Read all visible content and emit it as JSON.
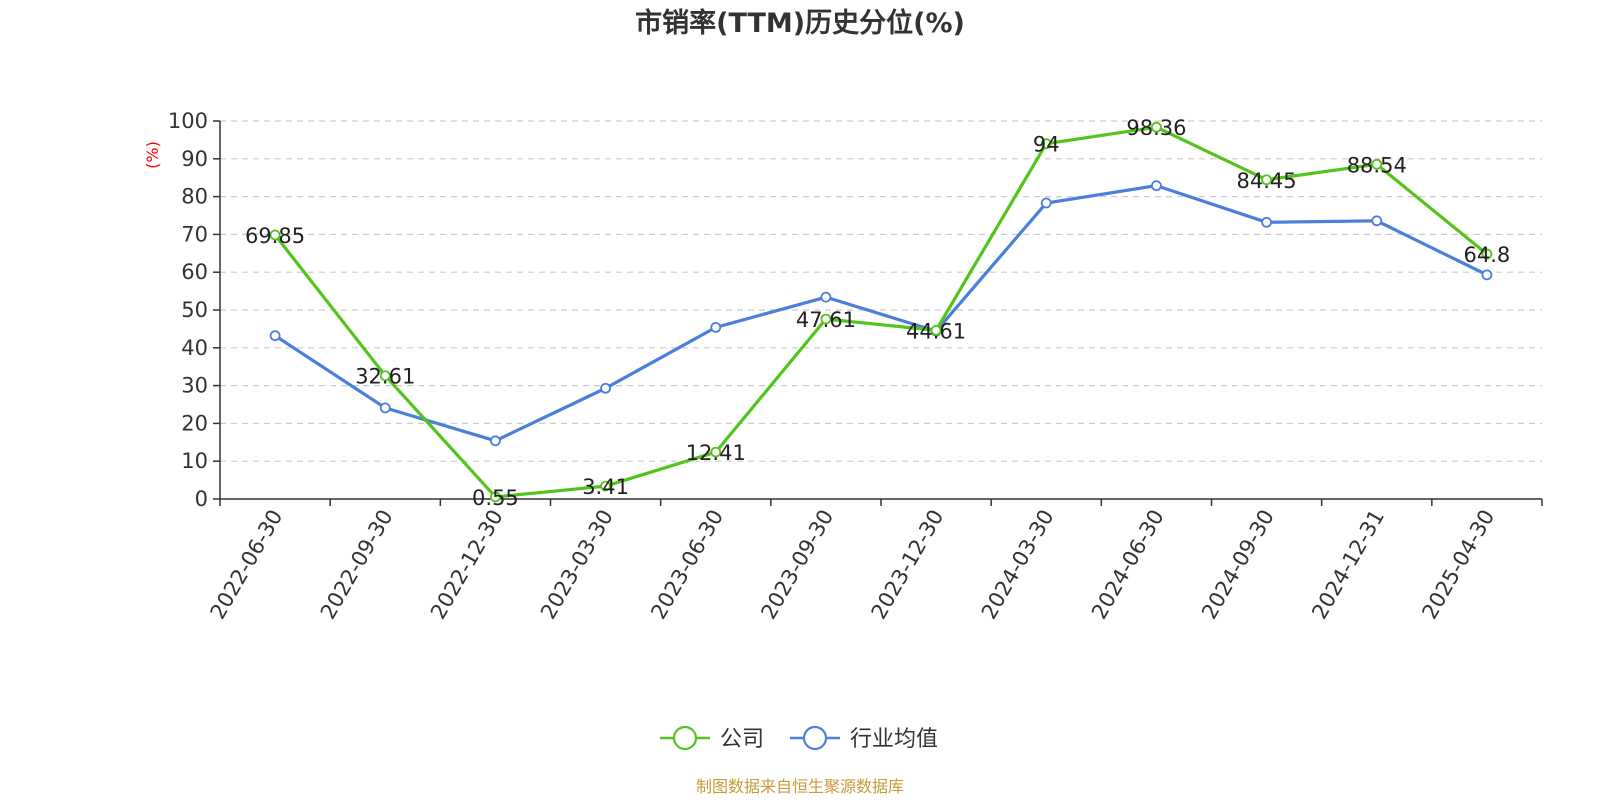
{
  "chart_data": {
    "type": "line",
    "title": "市销率(TTM)历史分位(%)",
    "ylabel": "(%)",
    "ylim": [
      0,
      100
    ],
    "yticks": [
      0,
      10,
      20,
      30,
      40,
      50,
      60,
      70,
      80,
      90,
      100
    ],
    "grid": true,
    "legend_position": "bottom",
    "x": [
      "2022-06-30",
      "2022-09-30",
      "2022-12-30",
      "2023-03-30",
      "2023-06-30",
      "2023-09-30",
      "2023-12-30",
      "2024-03-30",
      "2024-06-30",
      "2024-09-30",
      "2024-12-31",
      "2025-04-30"
    ],
    "series": [
      {
        "name": "公司",
        "color": "#52c41a",
        "values": [
          69.85,
          32.61,
          0.55,
          3.41,
          12.41,
          47.61,
          44.61,
          94,
          98.36,
          84.45,
          88.54,
          64.8
        ],
        "labels": [
          "69.85",
          "32.61",
          "0.55",
          "3.41",
          "12.41",
          "47.61",
          "44.61",
          "94",
          "98.36",
          "84.45",
          "88.54",
          "64.8"
        ],
        "show_labels": true
      },
      {
        "name": "行业均值",
        "color": "#4a7fdc",
        "values": [
          43.2,
          24.1,
          15.4,
          29.3,
          45.4,
          53.4,
          44.4,
          78.3,
          82.9,
          73.2,
          73.6,
          59.3
        ],
        "show_labels": false
      }
    ],
    "source": "制图数据来自恒生聚源数据库",
    "source_color": "#c89a3c",
    "unit_color": "#ff0000"
  }
}
